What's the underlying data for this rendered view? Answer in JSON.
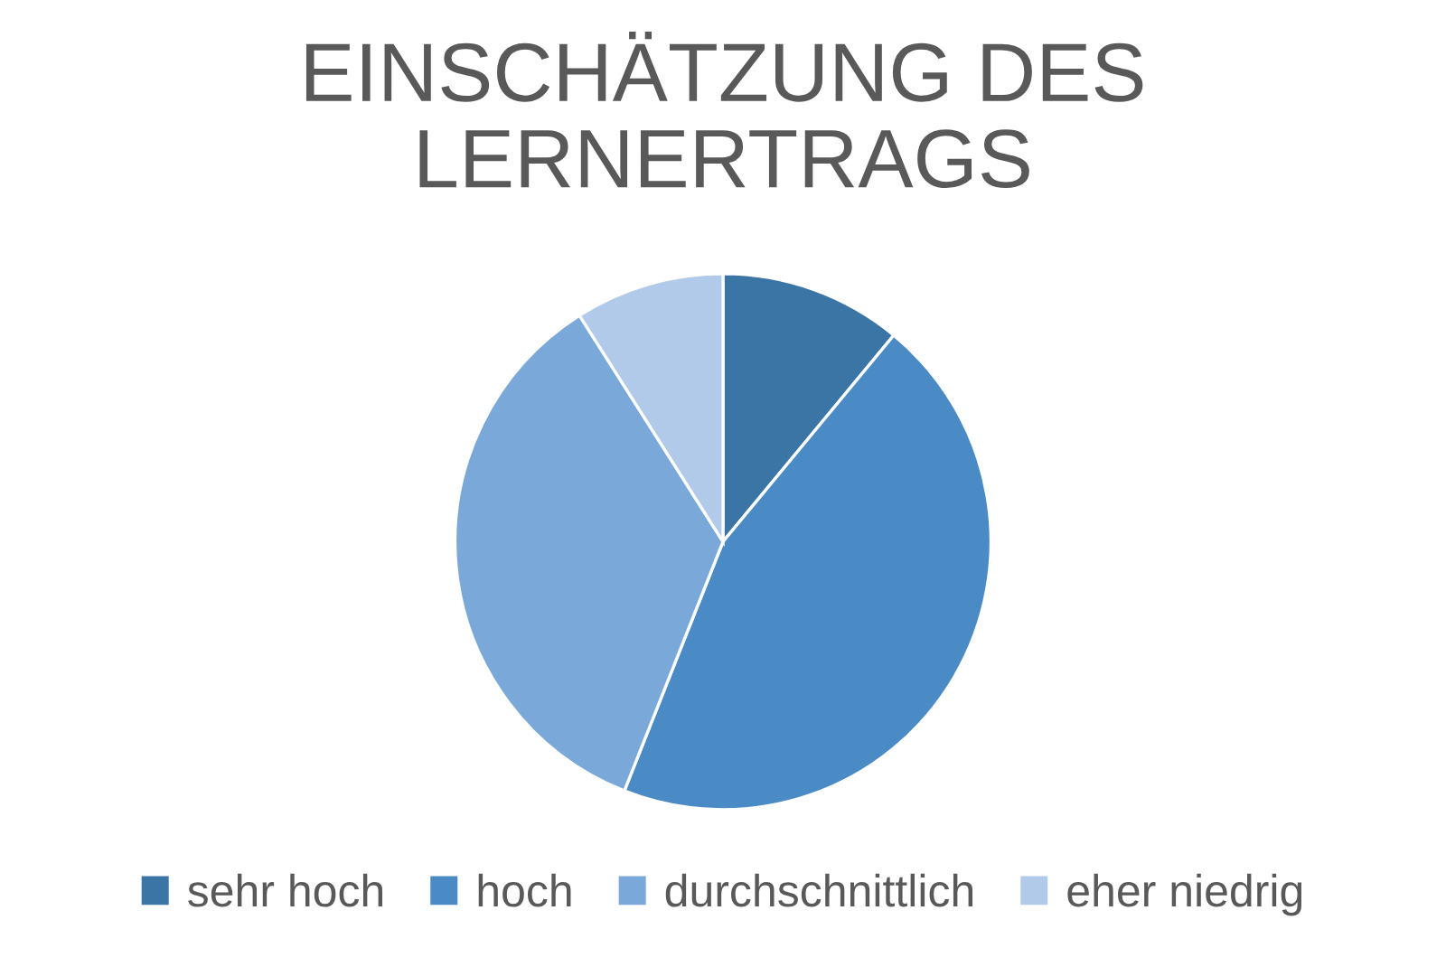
{
  "chart_data": {
    "type": "pie",
    "title": "EINSCHÄTZUNG DES LERNERTRAGS",
    "categories": [
      "sehr hoch",
      "hoch",
      "durchschnittlich",
      "eher niedrig"
    ],
    "values": [
      11,
      45,
      35,
      9
    ],
    "colors": [
      "#3a75a6",
      "#4a8bc6",
      "#7aa8d9",
      "#b1cae9"
    ],
    "legend": "bottom"
  }
}
